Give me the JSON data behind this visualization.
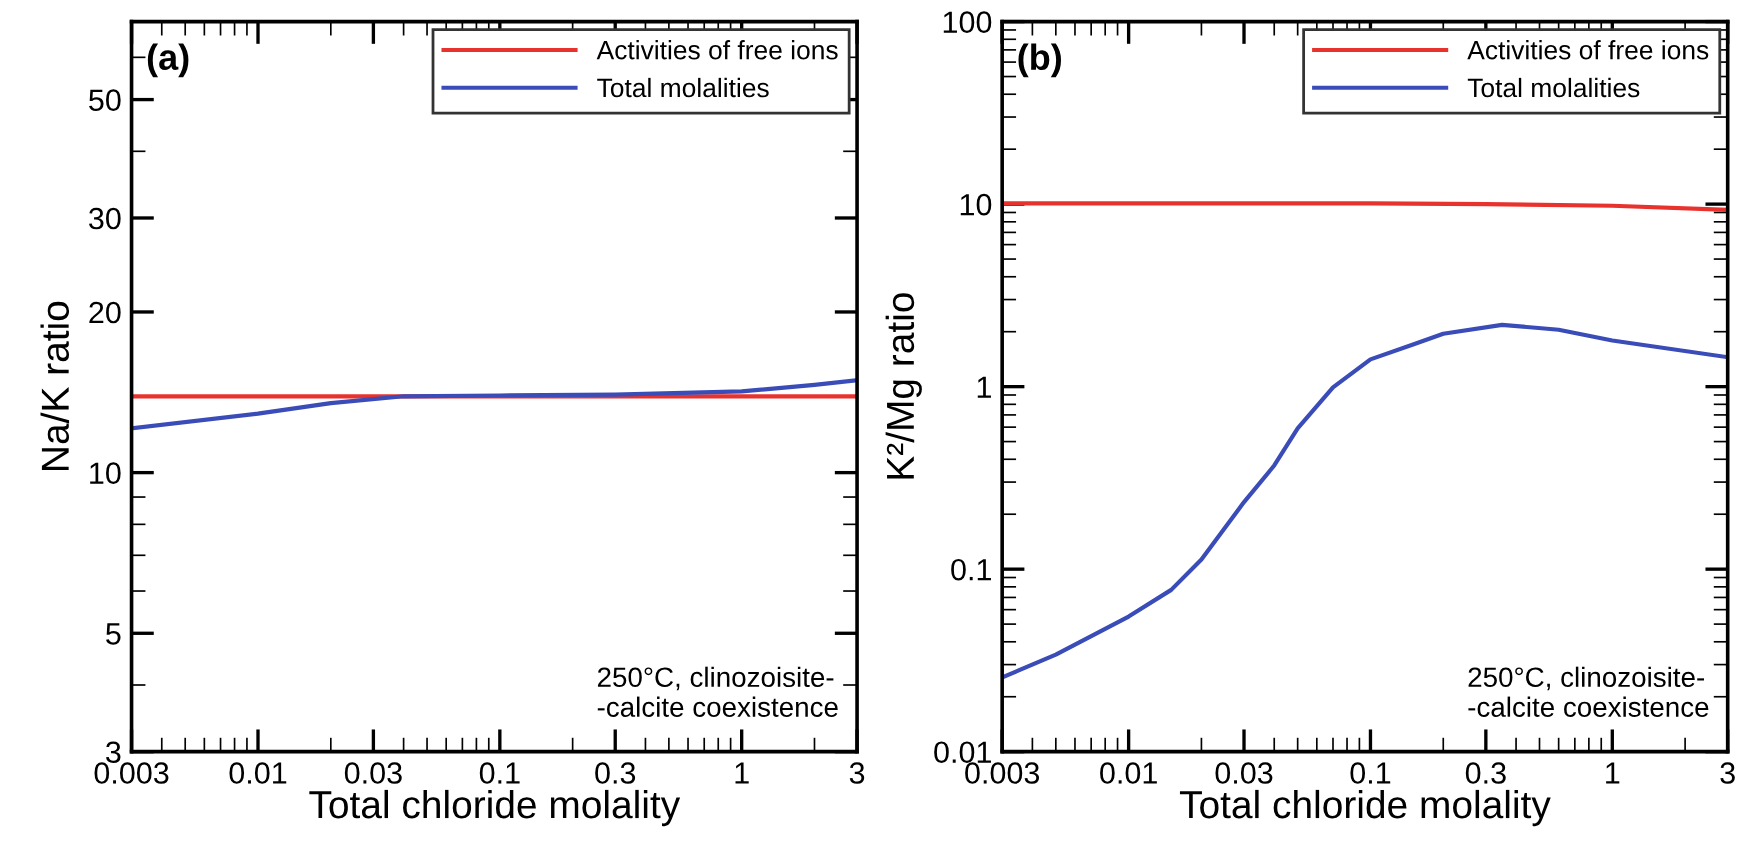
{
  "chart_data": [
    {
      "type": "line",
      "xlabel": "Total chloride molality",
      "ylabel": "Na/K ratio",
      "log": "xy",
      "grid": false,
      "legend": "top right",
      "xlim": [
        0.003,
        3
      ],
      "xticks": [
        0.003,
        0.01,
        0.03,
        0.1,
        0.3,
        1,
        3
      ],
      "ylim": [
        3,
        70
      ],
      "yticks": [
        3,
        5,
        10,
        20,
        30,
        50
      ],
      "annotations": [
        "(a)",
        "250°C, clinozoisite-\n-calcite coexistence"
      ],
      "series": [
        {
          "name": "Activities of free ions",
          "color": "#e8322e",
          "x": [
            0.003,
            0.03,
            0.3,
            3
          ],
          "values": [
            13.9,
            13.9,
            13.9,
            13.9
          ]
        },
        {
          "name": "Total molalities",
          "color": "#3a4cb8",
          "x": [
            0.003,
            0.01,
            0.02,
            0.04,
            0.1,
            0.3,
            1,
            2,
            3
          ],
          "values": [
            12.1,
            12.9,
            13.5,
            13.9,
            13.95,
            14.0,
            14.2,
            14.6,
            14.9
          ]
        }
      ]
    },
    {
      "type": "line",
      "xlabel": "Total chloride molality",
      "ylabel": "K²/Mg ratio",
      "log": "xy",
      "grid": false,
      "legend": "top right",
      "xlim": [
        0.003,
        3
      ],
      "xticks": [
        0.003,
        0.01,
        0.03,
        0.1,
        0.3,
        1,
        3
      ],
      "ylim": [
        0.01,
        100
      ],
      "yticks": [
        0.01,
        0.1,
        1,
        10,
        100
      ],
      "annotations": [
        "(b)",
        "250°C, clinozoisite-\n-calcite coexistence"
      ],
      "series": [
        {
          "name": "Activities of free ions",
          "color": "#e8322e",
          "x": [
            0.003,
            0.1,
            0.3,
            1,
            3
          ],
          "values": [
            10.1,
            10.1,
            10.0,
            9.8,
            9.3
          ]
        },
        {
          "name": "Total molalities",
          "color": "#3a4cb8",
          "x": [
            0.003,
            0.005,
            0.01,
            0.015,
            0.02,
            0.03,
            0.04,
            0.05,
            0.07,
            0.1,
            0.15,
            0.2,
            0.35,
            0.6,
            1,
            3
          ],
          "values": [
            0.0255,
            0.034,
            0.055,
            0.077,
            0.113,
            0.233,
            0.37,
            0.59,
            0.99,
            1.41,
            1.7,
            1.95,
            2.18,
            2.05,
            1.79,
            1.45
          ]
        }
      ]
    }
  ]
}
